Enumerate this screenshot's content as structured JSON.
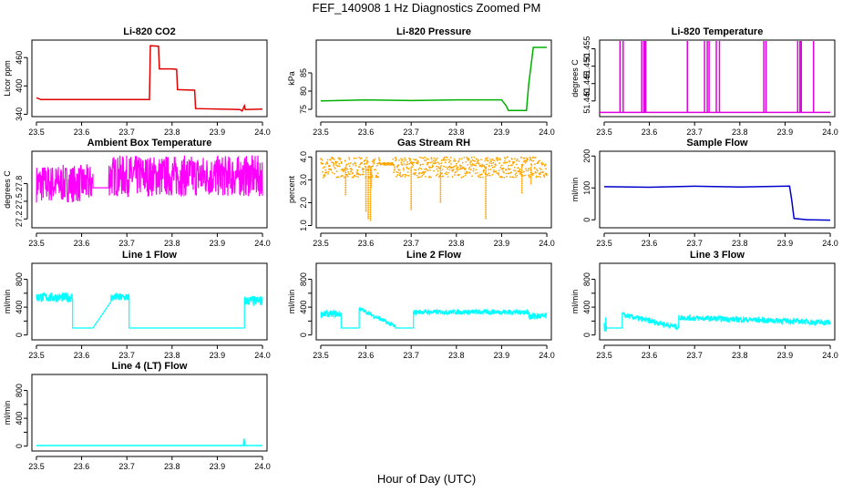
{
  "figure": {
    "title": "FEF_140908  1 Hz Diagnostics Zoomed PM",
    "xlabel": "Hour of Day (UTC)"
  },
  "chart_data": [
    {
      "type": "line",
      "title": "Li-820 CO2",
      "ylabel": "Licor ppm",
      "color": "#e00000",
      "xlim": [
        23.49,
        24.01
      ],
      "xticks": [
        23.5,
        23.6,
        23.7,
        23.8,
        23.9,
        24.0
      ],
      "xtick_labels": [
        "23.5",
        "23.6",
        "23.7",
        "23.8",
        "23.9",
        "24.0"
      ],
      "ylim": [
        335,
        497
      ],
      "yticks": [
        340,
        400,
        460
      ],
      "ytick_labels": [
        "340",
        "400",
        "460"
      ],
      "points": [
        [
          23.5,
          375
        ],
        [
          23.51,
          371
        ],
        [
          23.6,
          371
        ],
        [
          23.75,
          371
        ],
        [
          23.752,
          485
        ],
        [
          23.77,
          484
        ],
        [
          23.772,
          436
        ],
        [
          23.8,
          436
        ],
        [
          23.81,
          435
        ],
        [
          23.812,
          392
        ],
        [
          23.85,
          391
        ],
        [
          23.852,
          352
        ],
        [
          23.95,
          350
        ],
        [
          23.955,
          347
        ],
        [
          23.96,
          358
        ],
        [
          23.962,
          350
        ],
        [
          24.0,
          351
        ]
      ]
    },
    {
      "type": "line",
      "title": "Li-820 Pressure",
      "ylabel": "kPa",
      "color": "#00b000",
      "xlim": [
        23.49,
        24.01
      ],
      "xticks": [
        23.5,
        23.6,
        23.7,
        23.8,
        23.9,
        24.0
      ],
      "xtick_labels": [
        "23.5",
        "23.6",
        "23.7",
        "23.8",
        "23.9",
        "24.0"
      ],
      "ylim": [
        73,
        94
      ],
      "yticks": [
        75,
        80,
        85
      ],
      "ytick_labels": [
        "75",
        "80",
        "85"
      ],
      "points": [
        [
          23.5,
          77.3
        ],
        [
          23.6,
          77.6
        ],
        [
          23.7,
          77.4
        ],
        [
          23.8,
          77.6
        ],
        [
          23.9,
          77.6
        ],
        [
          23.91,
          76.0
        ],
        [
          23.915,
          74.7
        ],
        [
          23.955,
          74.7
        ],
        [
          23.96,
          82
        ],
        [
          23.965,
          87
        ],
        [
          23.97,
          92
        ],
        [
          24.0,
          92
        ]
      ]
    },
    {
      "type": "line",
      "title": "Li-820 Temperature",
      "ylabel": "degrees C",
      "color": "#e000e0",
      "xlim": [
        23.49,
        24.01
      ],
      "xticks": [
        23.5,
        23.6,
        23.7,
        23.8,
        23.9,
        24.0
      ],
      "xtick_labels": [
        "23.5",
        "23.6",
        "23.7",
        "23.8",
        "23.9",
        "24.0"
      ],
      "ylim": [
        51.4355,
        51.4575
      ],
      "yticks": [
        51.44,
        51.445,
        51.45,
        51.455
      ],
      "ytick_labels": [
        "51.440",
        "51.445",
        "51.450",
        "51.455"
      ],
      "base": 51.4367,
      "spikes": [
        23.535,
        23.542,
        23.583,
        23.588,
        23.59,
        23.592,
        23.684,
        23.722,
        23.728,
        23.732,
        23.748,
        23.755,
        23.853,
        23.858,
        23.928,
        23.933,
        23.936,
        23.963
      ]
    },
    {
      "type": "line",
      "title": "Ambient Box Temperature",
      "ylabel": "degrees C",
      "color": "#ff00ff",
      "xlim": [
        23.49,
        24.01
      ],
      "xticks": [
        23.5,
        23.6,
        23.7,
        23.8,
        23.9,
        24.0
      ],
      "xtick_labels": [
        "23.5",
        "23.6",
        "23.7",
        "23.8",
        "23.9",
        "24.0"
      ],
      "ylim": [
        27.05,
        28.35
      ],
      "yticks": [
        27.2,
        27.5,
        27.8
      ],
      "ytick_labels": [
        "27.2",
        "27.5",
        "27.8"
      ],
      "segments": [
        {
          "x": [
            23.5,
            23.625
          ],
          "center": 27.8,
          "amp": 0.32
        },
        {
          "x": [
            23.625,
            23.66
          ],
          "center": 27.73,
          "amp": 0.0
        },
        {
          "x": [
            23.66,
            24.0
          ],
          "center": 27.93,
          "amp": 0.35
        }
      ]
    },
    {
      "type": "scatter",
      "title": "Gas Stream RH",
      "ylabel": "percent",
      "color": "#ffa500",
      "xlim": [
        23.49,
        24.01
      ],
      "xticks": [
        23.5,
        23.6,
        23.7,
        23.8,
        23.9,
        24.0
      ],
      "xtick_labels": [
        "23.5",
        "23.6",
        "23.7",
        "23.8",
        "23.9",
        "24.0"
      ],
      "ylim": [
        0.9,
        4.25
      ],
      "yticks": [
        1.0,
        2.0,
        3.0,
        4.0
      ],
      "ytick_labels": [
        "1.0",
        "2.0",
        "3.0",
        "4.0"
      ],
      "segments": [
        {
          "x": [
            23.5,
            23.63
          ],
          "center": 3.55,
          "amp": 0.45
        },
        {
          "x": [
            23.63,
            23.66
          ],
          "center": 3.7,
          "amp": 0.05
        },
        {
          "x": [
            23.66,
            24.0
          ],
          "center": 3.55,
          "amp": 0.45
        }
      ],
      "dips": [
        [
          23.555,
          2.3
        ],
        [
          23.6,
          1.6
        ],
        [
          23.605,
          1.3
        ],
        [
          23.61,
          1.2
        ],
        [
          23.612,
          2.6
        ],
        [
          23.7,
          1.7
        ],
        [
          23.765,
          2.0
        ],
        [
          23.865,
          1.25
        ],
        [
          23.945,
          2.4
        ],
        [
          23.965,
          2.8
        ]
      ]
    },
    {
      "type": "line",
      "title": "Sample Flow",
      "ylabel": "ml/min",
      "color": "#0000cc",
      "xlim": [
        23.49,
        24.01
      ],
      "xticks": [
        23.5,
        23.6,
        23.7,
        23.8,
        23.9,
        24.0
      ],
      "xtick_labels": [
        "23.5",
        "23.6",
        "23.7",
        "23.8",
        "23.9",
        "24.0"
      ],
      "ylim": [
        -25,
        215
      ],
      "yticks": [
        0,
        100,
        200
      ],
      "ytick_labels": [
        "0",
        "100",
        "200"
      ],
      "points": [
        [
          23.5,
          103
        ],
        [
          23.6,
          102
        ],
        [
          23.7,
          104
        ],
        [
          23.8,
          102
        ],
        [
          23.91,
          105
        ],
        [
          23.915,
          60
        ],
        [
          23.92,
          5
        ],
        [
          23.95,
          1
        ],
        [
          24.0,
          0
        ]
      ],
      "noise": 3
    },
    {
      "type": "line",
      "title": "Line 1 Flow",
      "ylabel": "ml/min",
      "color": "#00ffff",
      "xlim": [
        23.49,
        24.01
      ],
      "xticks": [
        23.5,
        23.6,
        23.7,
        23.8,
        23.9,
        24.0
      ],
      "xtick_labels": [
        "23.5",
        "23.6",
        "23.7",
        "23.8",
        "23.9",
        "24.0"
      ],
      "ylim": [
        -70,
        1030
      ],
      "yticks": [
        0,
        200,
        400,
        600,
        800
      ],
      "ytick_labels": [
        "0",
        "400",
        "800"
      ],
      "ytick_label_values": [
        0,
        400,
        800
      ],
      "segments": [
        {
          "x": [
            23.5,
            23.58
          ],
          "center": 540,
          "amp": 70
        },
        {
          "x": [
            23.58,
            23.625
          ],
          "center": 100,
          "amp": 0
        },
        {
          "x": [
            23.625,
            23.665
          ],
          "from": 100,
          "to": 480
        },
        {
          "x": [
            23.665,
            23.705
          ],
          "center": 540,
          "amp": 60
        },
        {
          "x": [
            23.705,
            23.96
          ],
          "center": 100,
          "amp": 0
        },
        {
          "x": [
            23.96,
            24.0
          ],
          "center": 490,
          "amp": 70
        }
      ]
    },
    {
      "type": "line",
      "title": "Line 2 Flow",
      "ylabel": "ml/min",
      "color": "#00ffff",
      "xlim": [
        23.49,
        24.01
      ],
      "xticks": [
        23.5,
        23.6,
        23.7,
        23.8,
        23.9,
        24.0
      ],
      "xtick_labels": [
        "23.5",
        "23.6",
        "23.7",
        "23.8",
        "23.9",
        "24.0"
      ],
      "ylim": [
        -70,
        1030
      ],
      "yticks": [
        0,
        200,
        400,
        600,
        800
      ],
      "ytick_labels": [
        "0",
        "400",
        "800"
      ],
      "ytick_label_values": [
        0,
        400,
        800
      ],
      "segments": [
        {
          "x": [
            23.5,
            23.545
          ],
          "center": 300,
          "amp": 45
        },
        {
          "x": [
            23.545,
            23.585
          ],
          "center": 100,
          "amp": 0
        },
        {
          "x": [
            23.585,
            23.665
          ],
          "from": 380,
          "to": 120,
          "amp": 30
        },
        {
          "x": [
            23.665,
            23.705
          ],
          "center": 100,
          "amp": 0
        },
        {
          "x": [
            23.705,
            23.96
          ],
          "center": 330,
          "amp": 35
        },
        {
          "x": [
            23.96,
            24.0
          ],
          "center": 270,
          "amp": 50
        }
      ]
    },
    {
      "type": "line",
      "title": "Line 3 Flow",
      "ylabel": "ml/min",
      "color": "#00ffff",
      "xlim": [
        23.49,
        24.01
      ],
      "xticks": [
        23.5,
        23.6,
        23.7,
        23.8,
        23.9,
        24.0
      ],
      "xtick_labels": [
        "23.5",
        "23.6",
        "23.7",
        "23.8",
        "23.9",
        "24.0"
      ],
      "ylim": [
        -70,
        1030
      ],
      "yticks": [
        0,
        200,
        400,
        600,
        800
      ],
      "ytick_labels": [
        "0",
        "400",
        "800"
      ],
      "ytick_label_values": [
        0,
        400,
        800
      ],
      "segments": [
        {
          "x": [
            23.5,
            23.505
          ],
          "center": 150,
          "amp": 110
        },
        {
          "x": [
            23.505,
            23.54
          ],
          "center": 100,
          "amp": 0
        },
        {
          "x": [
            23.54,
            23.665
          ],
          "from": 290,
          "to": 110,
          "amp": 40
        },
        {
          "x": [
            23.665,
            23.96
          ],
          "from": 250,
          "to": 190,
          "amp": 40
        },
        {
          "x": [
            23.96,
            24.0
          ],
          "center": 180,
          "amp": 45
        }
      ]
    },
    {
      "type": "line",
      "title": "Line 4 (LT) Flow",
      "ylabel": "ml/min",
      "color": "#00ffff",
      "xlim": [
        23.49,
        24.01
      ],
      "xticks": [
        23.5,
        23.6,
        23.7,
        23.8,
        23.9,
        24.0
      ],
      "xtick_labels": [
        "23.5",
        "23.6",
        "23.7",
        "23.8",
        "23.9",
        "24.0"
      ],
      "ylim": [
        -70,
        1030
      ],
      "yticks": [
        0,
        200,
        400,
        600,
        800
      ],
      "ytick_labels": [
        "0",
        "400",
        "800"
      ],
      "ytick_label_values": [
        0,
        400,
        800
      ],
      "points": [
        [
          23.5,
          8
        ],
        [
          23.958,
          8
        ],
        [
          23.959,
          110
        ],
        [
          23.961,
          10
        ],
        [
          24.0,
          8
        ]
      ]
    }
  ]
}
